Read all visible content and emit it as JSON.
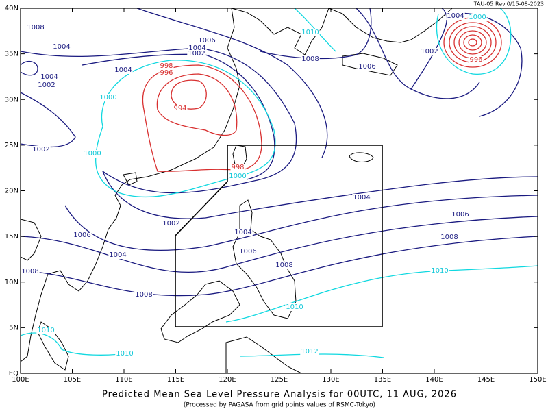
{
  "header": {
    "revision": "TAU-05 Rev.0/15-08-2023"
  },
  "map": {
    "lat_labels": [
      "40N",
      "35N",
      "30N",
      "25N",
      "20N",
      "15N",
      "10N",
      "5N",
      "EQ"
    ],
    "lon_labels": [
      "100E",
      "105E",
      "110E",
      "115E",
      "120E",
      "125E",
      "130E",
      "135E",
      "140E",
      "145E",
      "150E"
    ],
    "isobar_labels": [
      "1008",
      "1004",
      "1004",
      "1004",
      "1002",
      "1006",
      "1004",
      "1002",
      "998",
      "996",
      "994",
      "1000",
      "1010",
      "1008",
      "1006",
      "1002",
      "1004",
      "1000",
      "996",
      "1002",
      "1000",
      "998",
      "1000",
      "1004",
      "1002",
      "1006",
      "1006",
      "1004",
      "1004",
      "1008",
      "1006",
      "1008",
      "1008",
      "1010",
      "1008",
      "1010",
      "1010",
      "1010",
      "1012"
    ]
  },
  "footer": {
    "title": "Predicted Mean Sea Level Pressure Analysis for 00UTC, 11 AUG, 2026",
    "subtitle": "(Processed by PAGASA from grid points values of RSMC-Tokyo)"
  }
}
